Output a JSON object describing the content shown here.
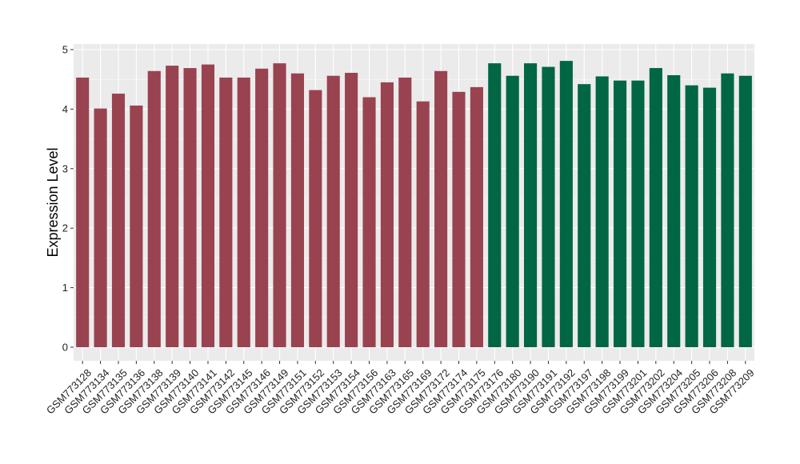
{
  "chart_data": {
    "type": "bar",
    "ylabel": "Expression Level",
    "ylim": [
      0,
      5
    ],
    "yticks": [
      0,
      1,
      2,
      3,
      4,
      5
    ],
    "grid": true,
    "background": "#ebebeb",
    "colors": {
      "group_1": "#9a4350",
      "group_2": "#006644"
    },
    "categories": [
      "GSM773128",
      "GSM773134",
      "GSM773135",
      "GSM773136",
      "GSM773138",
      "GSM773139",
      "GSM773140",
      "GSM773141",
      "GSM773142",
      "GSM773145",
      "GSM773146",
      "GSM773149",
      "GSM773151",
      "GSM773152",
      "GSM773153",
      "GSM773154",
      "GSM773156",
      "GSM773163",
      "GSM773165",
      "GSM773169",
      "GSM773172",
      "GSM773174",
      "GSM773175",
      "GSM773176",
      "GSM773180",
      "GSM773190",
      "GSM773191",
      "GSM773192",
      "GSM773197",
      "GSM773198",
      "GSM773199",
      "GSM773201",
      "GSM773202",
      "GSM773204",
      "GSM773205",
      "GSM773206",
      "GSM773208",
      "GSM773209"
    ],
    "values": [
      4.53,
      4.01,
      4.26,
      4.06,
      4.64,
      4.73,
      4.69,
      4.75,
      4.53,
      4.53,
      4.68,
      4.77,
      4.6,
      4.32,
      4.56,
      4.61,
      4.2,
      4.45,
      4.53,
      4.13,
      4.64,
      4.29,
      4.37,
      4.77,
      4.56,
      4.77,
      4.71,
      4.81,
      4.42,
      4.55,
      4.48,
      4.48,
      4.69,
      4.57,
      4.4,
      4.36,
      4.6,
      4.56
    ],
    "groups": [
      1,
      1,
      1,
      1,
      1,
      1,
      1,
      1,
      1,
      1,
      1,
      1,
      1,
      1,
      1,
      1,
      1,
      1,
      1,
      1,
      1,
      1,
      1,
      2,
      2,
      2,
      2,
      2,
      2,
      2,
      2,
      2,
      2,
      2,
      2,
      2,
      2,
      2
    ]
  }
}
